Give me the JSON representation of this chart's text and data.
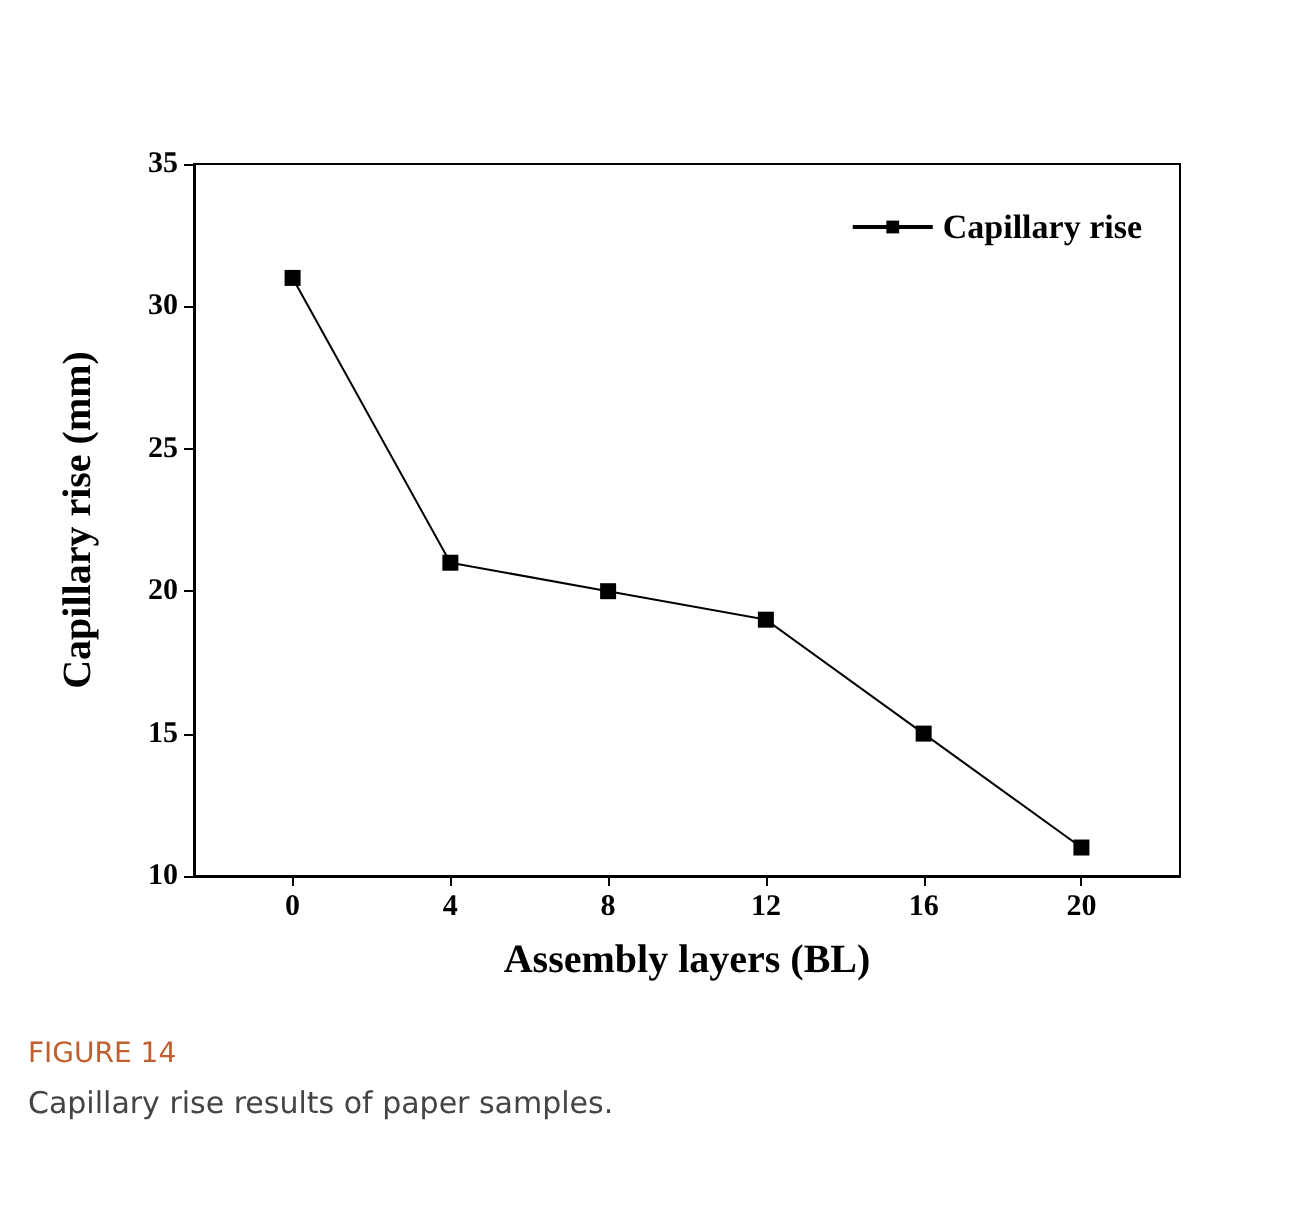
{
  "chart_data": {
    "type": "line",
    "xlabel": "Assembly layers (BL)",
    "ylabel": "Capillary rise (mm)",
    "x": [
      0,
      4,
      8,
      12,
      16,
      20
    ],
    "series": [
      {
        "name": "Capillary rise",
        "color": "#000000",
        "values": [
          31,
          21,
          20,
          19,
          15,
          11
        ]
      }
    ],
    "xlim": [
      -2.5,
      22.5
    ],
    "xticks": [
      0,
      4,
      8,
      12,
      16,
      20
    ],
    "ylim": [
      10,
      35
    ],
    "yticks": [
      10,
      15,
      20,
      25,
      30,
      35
    ],
    "grid": false,
    "legend": "top right",
    "marker": "square",
    "line_style": "solid",
    "annotations": [
      "FIGURE 14",
      "Capillary rise results of paper samples."
    ]
  }
}
